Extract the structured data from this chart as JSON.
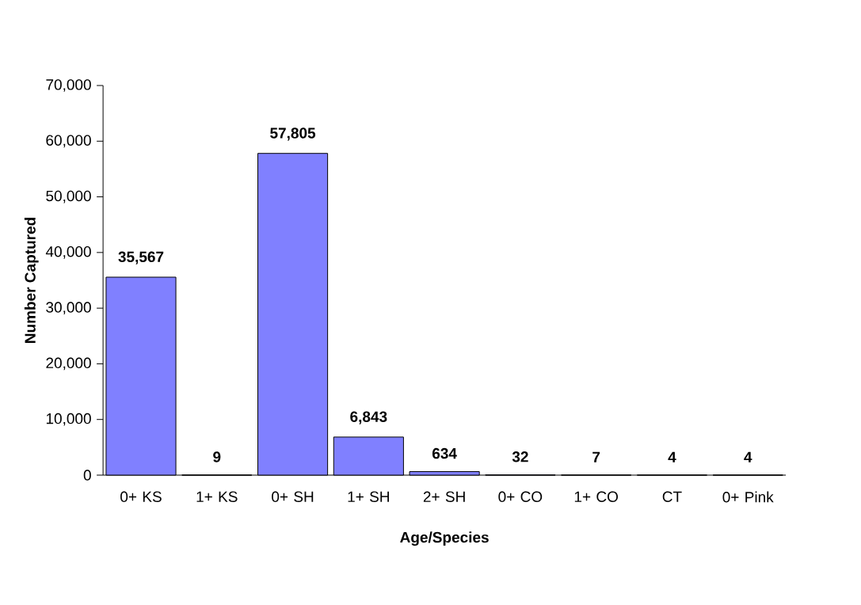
{
  "chart_data": {
    "type": "bar",
    "xlabel": "Age/Species",
    "ylabel": "Number Captured",
    "categories": [
      "0+ KS",
      "1+ KS",
      "0+ SH",
      "1+ SH",
      "2+ SH",
      "0+ CO",
      "1+ CO",
      "CT",
      "0+ Pink"
    ],
    "values": [
      35567,
      9,
      57805,
      6843,
      634,
      32,
      7,
      4,
      4
    ],
    "value_labels": [
      "35,567",
      "9",
      "57,805",
      "6,843",
      "634",
      "32",
      "7",
      "4",
      "4"
    ],
    "color": "#8080ff",
    "ylim": [
      0,
      70000
    ],
    "yticks": [
      {
        "value": 0,
        "label": "0"
      },
      {
        "value": 10000,
        "label": "10,000"
      },
      {
        "value": 20000,
        "label": "20,000"
      },
      {
        "value": 30000,
        "label": "30,000"
      },
      {
        "value": 40000,
        "label": "40,000"
      },
      {
        "value": 50000,
        "label": "50,000"
      },
      {
        "value": 60000,
        "label": "60,000"
      },
      {
        "value": 70000,
        "label": "70,000"
      }
    ]
  }
}
